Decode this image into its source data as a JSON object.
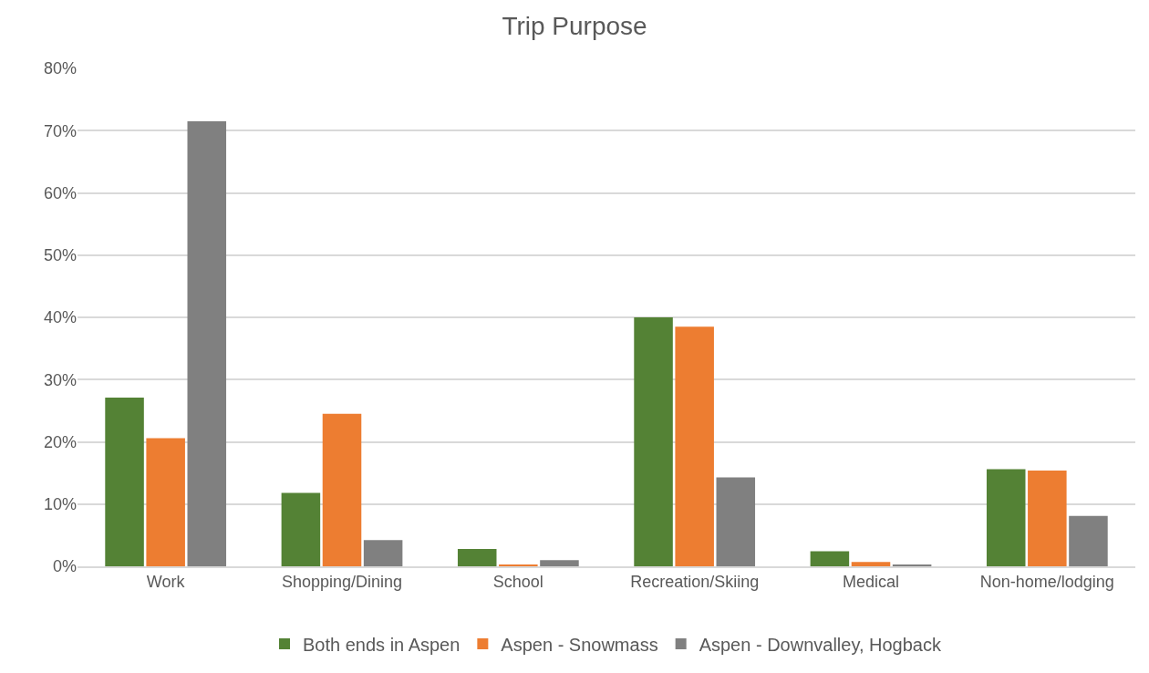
{
  "chart_data": {
    "type": "bar",
    "title": "Trip Purpose",
    "categories": [
      "Work",
      "Shopping/Dining",
      "School",
      "Recreation/Skiing",
      "Medical",
      "Non-home/lodging"
    ],
    "series": [
      {
        "name": "Both ends in Aspen",
        "color": "#548235",
        "values": [
          27.1,
          11.8,
          2.8,
          40.0,
          2.4,
          15.6
        ]
      },
      {
        "name": "Aspen - Snowmass",
        "color": "#ed7d31",
        "values": [
          20.6,
          24.5,
          0.3,
          38.5,
          0.7,
          15.4
        ]
      },
      {
        "name": "Aspen - Downvalley, Hogback",
        "color": "#808080",
        "values": [
          71.5,
          4.2,
          1.0,
          14.3,
          0.3,
          8.1
        ]
      }
    ],
    "ylim": [
      0,
      80
    ],
    "yticks": [
      {
        "value": 0,
        "label": "0%"
      },
      {
        "value": 10,
        "label": "10%"
      },
      {
        "value": 20,
        "label": "20%"
      },
      {
        "value": 30,
        "label": "30%"
      },
      {
        "value": 40,
        "label": "40%"
      },
      {
        "value": 50,
        "label": "50%"
      },
      {
        "value": 60,
        "label": "60%"
      },
      {
        "value": 70,
        "label": "70%"
      },
      {
        "value": 80,
        "label": "80%"
      }
    ],
    "grid": "y",
    "legend": "bottom"
  }
}
